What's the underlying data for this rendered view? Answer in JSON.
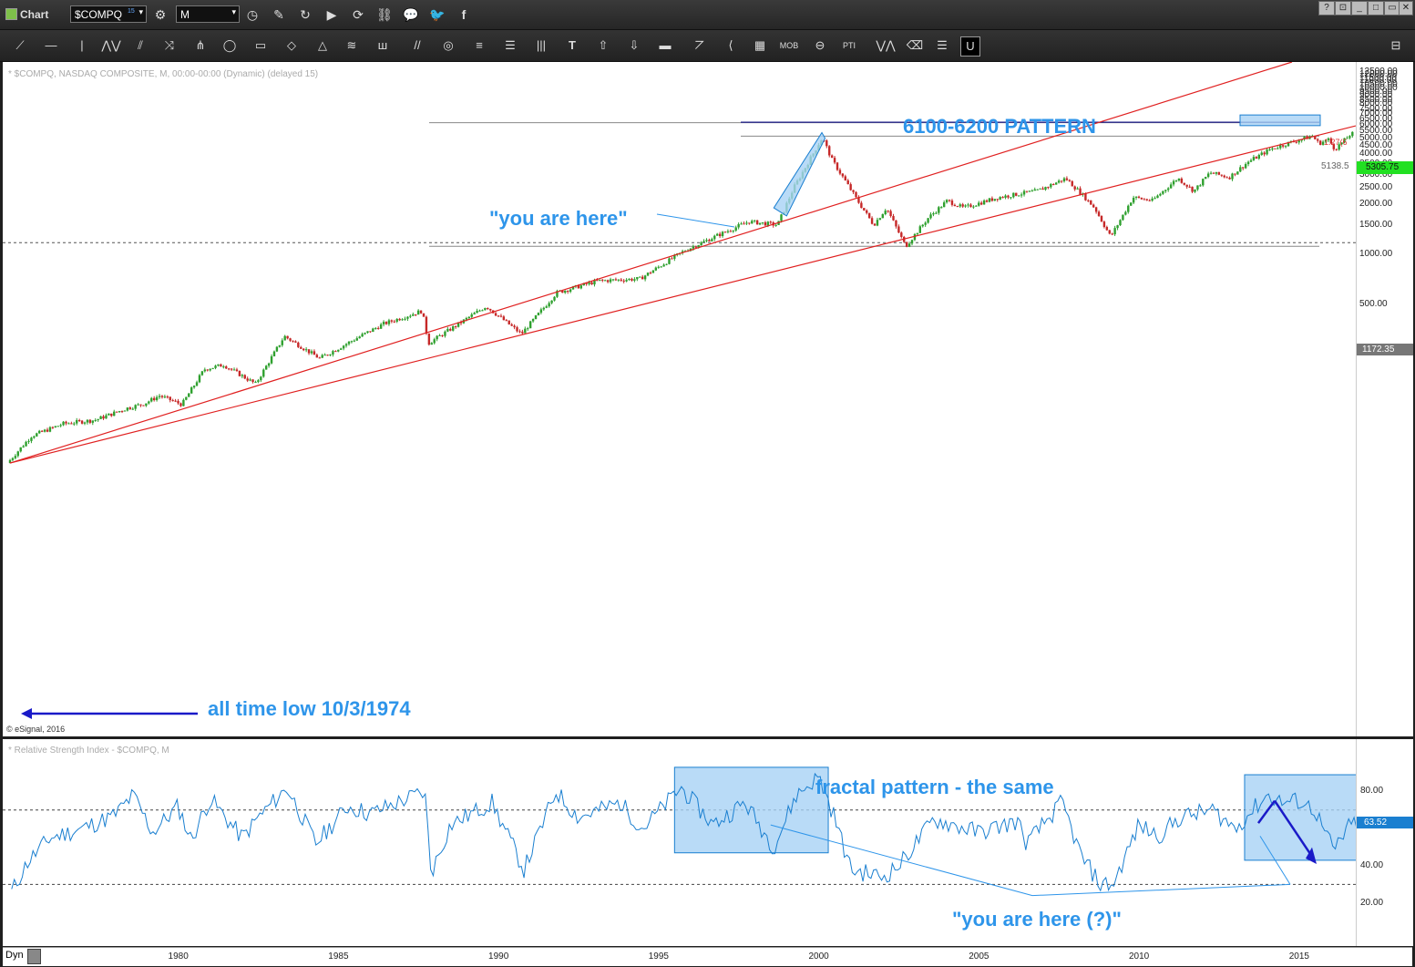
{
  "window": {
    "title": "Chart"
  },
  "toolbar": {
    "symbol": "$COMPQ",
    "symbol_sup": "15",
    "interval": "M"
  },
  "main_panel": {
    "info": "* $COMPQ, NASDAQ COMPOSITE, M, 00:00-00:00 (Dynamic) (delayed 15)",
    "copyright": "© eSignal, 2016",
    "annotations": {
      "pattern": "6100-6200 PATTERN",
      "here": "\"you are here\"",
      "low": "all time low 10/3/1974"
    },
    "line_labels": {
      "level_5138": "5138.5",
      "level_6200": "1.27(6"
    },
    "price_badges": {
      "last": "5305.75",
      "support": "1172.35"
    }
  },
  "rsi_panel": {
    "info": "* Relative Strength Index - $COMPQ, M",
    "annotations": {
      "fractal": "fractal pattern - the same",
      "here_q": "\"you are here (?)\""
    },
    "badge": "63.52"
  },
  "status": {
    "dyn": "Dyn"
  },
  "colors": {
    "annot_blue": "#2e95ea",
    "trend_red": "#e02020",
    "up": "#2ea02e",
    "down": "#c62828",
    "rsi": "#1a7fd0",
    "box": "#a7d2f5"
  },
  "chart_data": [
    {
      "type": "candlestick",
      "title": "NASDAQ COMPOSITE",
      "x_range": [
        1974.75,
        2016.8
      ],
      "y_scale": "log",
      "y_ticks": [
        "500.00",
        "1000.00",
        "1500.00",
        "2000.00",
        "2500.00",
        "3000.00",
        "3500.00",
        "4000.00",
        "4500.00",
        "5000.00",
        "5500.00",
        "6000.00",
        "6500.00",
        "7000.00",
        "7500.00",
        "8000.00",
        "8500.00",
        "9000.00",
        "9500.00",
        "10000.00",
        "10500.00",
        "11000.00",
        "11500.00",
        "12000.00",
        "12500.00"
      ],
      "x_ticks": [
        "1980",
        "1985",
        "1990",
        "1995",
        "2000",
        "2005",
        "2010",
        "2015"
      ],
      "series": [
        {
          "points": [
            [
              1974.0,
              75
            ],
            [
              1974.75,
              55
            ],
            [
              1975.5,
              80
            ],
            [
              1976.5,
              95
            ],
            [
              1977.5,
              100
            ],
            [
              1978.5,
              118
            ],
            [
              1979.0,
              125
            ],
            [
              1979.5,
              140
            ],
            [
              1980.2,
              124
            ],
            [
              1980.9,
              202
            ],
            [
              1981.5,
              215
            ],
            [
              1982.5,
              165
            ],
            [
              1983.4,
              320
            ],
            [
              1984.5,
              235
            ],
            [
              1985.9,
              330
            ],
            [
              1986.5,
              380
            ],
            [
              1987.7,
              455
            ],
            [
              1987.9,
              290
            ],
            [
              1989.7,
              485
            ],
            [
              1990.8,
              330
            ],
            [
              1991.9,
              585
            ],
            [
              1993.2,
              690
            ],
            [
              1994.5,
              710
            ],
            [
              1995.9,
              1050
            ],
            [
              1996.9,
              1290
            ],
            [
              1997.9,
              1570
            ],
            [
              1998.8,
              1500
            ],
            [
              1999.3,
              2500
            ],
            [
              2000.2,
              5048
            ],
            [
              2000.5,
              3700
            ],
            [
              2001.3,
              2100
            ],
            [
              2001.8,
              1500
            ],
            [
              2002.2,
              1900
            ],
            [
              2002.8,
              1114
            ],
            [
              2003.5,
              1650
            ],
            [
              2004.1,
              2100
            ],
            [
              2004.6,
              1900
            ],
            [
              2005.7,
              2200
            ],
            [
              2006.9,
              2400
            ],
            [
              2007.8,
              2860
            ],
            [
              2008.3,
              2300
            ],
            [
              2008.7,
              1900
            ],
            [
              2009.2,
              1270
            ],
            [
              2009.9,
              2200
            ],
            [
              2010.5,
              2100
            ],
            [
              2011.3,
              2870
            ],
            [
              2011.8,
              2400
            ],
            [
              2012.3,
              3100
            ],
            [
              2012.9,
              2900
            ],
            [
              2013.5,
              3600
            ],
            [
              2014.2,
              4300
            ],
            [
              2014.8,
              4700
            ],
            [
              2015.5,
              5150
            ],
            [
              2015.7,
              4650
            ],
            [
              2016.0,
              4900
            ],
            [
              2016.2,
              4300
            ],
            [
              2016.5,
              4850
            ],
            [
              2016.7,
              5305
            ]
          ]
        }
      ]
    },
    {
      "type": "line",
      "title": "Relative Strength Index",
      "x_range": [
        1974.75,
        2016.8
      ],
      "y_range": [
        10,
        100
      ],
      "y_ticks": [
        "20.00",
        "40.00",
        "80.00"
      ],
      "reference_lines": [
        30,
        70
      ],
      "series": [
        {
          "points": [
            [
              1974.8,
              26
            ],
            [
              1975.3,
              42
            ],
            [
              1976.0,
              55
            ],
            [
              1977.0,
              60
            ],
            [
              1978.0,
              67
            ],
            [
              1978.6,
              78
            ],
            [
              1979.2,
              58
            ],
            [
              1980.0,
              72
            ],
            [
              1980.4,
              54
            ],
            [
              1981.0,
              76
            ],
            [
              1982.0,
              55
            ],
            [
              1982.5,
              66
            ],
            [
              1983.4,
              82
            ],
            [
              1984.3,
              52
            ],
            [
              1985.3,
              72
            ],
            [
              1986.0,
              68
            ],
            [
              1987.7,
              80
            ],
            [
              1987.9,
              36
            ],
            [
              1988.5,
              62
            ],
            [
              1989.8,
              74
            ],
            [
              1990.8,
              38
            ],
            [
              1991.8,
              80
            ],
            [
              1992.5,
              66
            ],
            [
              1993.8,
              74
            ],
            [
              1994.5,
              60
            ],
            [
              1995.7,
              82
            ],
            [
              1996.7,
              62
            ],
            [
              1997.7,
              74
            ],
            [
              1998.6,
              50
            ],
            [
              1999.3,
              78
            ],
            [
              2000.0,
              88
            ],
            [
              2000.5,
              66
            ],
            [
              2001.0,
              38
            ],
            [
              2002.0,
              34
            ],
            [
              2002.5,
              40
            ],
            [
              2003.6,
              65
            ],
            [
              2004.2,
              62
            ],
            [
              2005.0,
              58
            ],
            [
              2006.2,
              64
            ],
            [
              2006.5,
              52
            ],
            [
              2007.6,
              74
            ],
            [
              2008.2,
              45
            ],
            [
              2008.8,
              30
            ],
            [
              2009.2,
              30
            ],
            [
              2010.0,
              62
            ],
            [
              2010.6,
              56
            ],
            [
              2011.3,
              66
            ],
            [
              2012.3,
              70
            ],
            [
              2013.0,
              60
            ],
            [
              2014.0,
              78
            ],
            [
              2014.5,
              74
            ],
            [
              2015.0,
              75
            ],
            [
              2015.5,
              70
            ],
            [
              2015.8,
              58
            ],
            [
              2016.1,
              48
            ],
            [
              2016.5,
              60
            ],
            [
              2016.8,
              63.52
            ]
          ]
        }
      ]
    }
  ]
}
